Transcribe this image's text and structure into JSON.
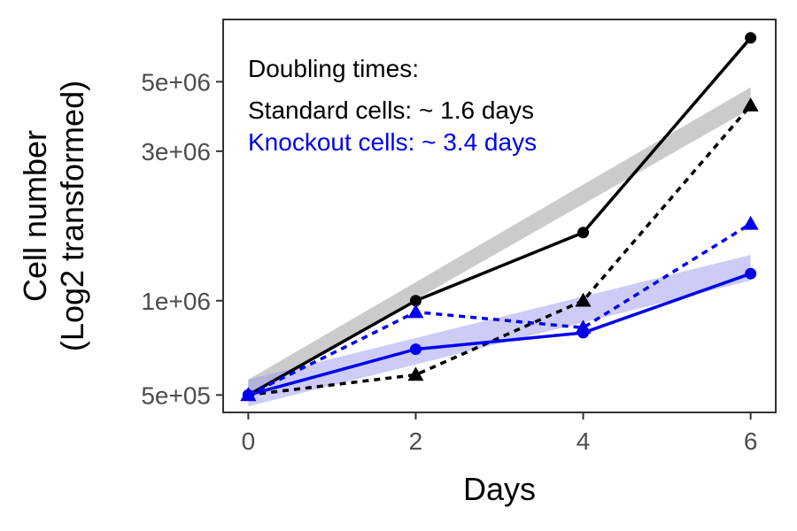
{
  "chart_data": {
    "type": "line",
    "xlabel": "Days",
    "ylabel_lines": [
      "Cell number",
      "(Log2 transformed)"
    ],
    "x_ticks": [
      0,
      2,
      4,
      6
    ],
    "x_tick_labels": [
      "0",
      "2",
      "4",
      "6"
    ],
    "xlim": [
      -0.3,
      6.3
    ],
    "y_scale": "log2",
    "y_ticks": [
      500000,
      1000000,
      3000000,
      5000000
    ],
    "y_tick_labels": [
      "5e+05",
      "1e+06",
      "3e+06",
      "5e+06"
    ],
    "ylim": [
      440000,
      7900000
    ],
    "grid": false,
    "series": [
      {
        "key": "std_circle",
        "color": "#000000",
        "dash": "solid",
        "marker": "circle",
        "x": [
          0,
          2,
          4,
          6
        ],
        "y": [
          500000,
          1000000,
          1650000,
          6900000
        ]
      },
      {
        "key": "std_triangle",
        "color": "#000000",
        "dash": "dotted",
        "marker": "triangle",
        "x": [
          0,
          2,
          4,
          6
        ],
        "y": [
          500000,
          580000,
          1000000,
          4200000
        ]
      },
      {
        "key": "ko_circle",
        "color": "#0000ee",
        "dash": "solid",
        "marker": "circle",
        "x": [
          0,
          2,
          4,
          6
        ],
        "y": [
          500000,
          700000,
          790000,
          1220000
        ]
      },
      {
        "key": "ko_triangle",
        "color": "#0000ee",
        "dash": "dotted",
        "marker": "triangle",
        "x": [
          0,
          2,
          4,
          6
        ],
        "y": [
          500000,
          920000,
          820000,
          1760000
        ]
      }
    ],
    "fit_bands": [
      {
        "key": "standard_fit",
        "color": "#bebebe",
        "opacity": 0.8,
        "x": [
          0,
          6
        ],
        "y_low": [
          500000,
          4100000
        ],
        "y_high": [
          560000,
          4800000
        ]
      },
      {
        "key": "knockout_fit",
        "color": "#9999ee",
        "opacity": 0.5,
        "x": [
          0,
          6
        ],
        "y_low": [
          460000,
          1160000
        ],
        "y_high": [
          560000,
          1400000
        ]
      }
    ],
    "annotations": [
      {
        "key": "title",
        "text": "Doubling times:",
        "color": "#000000"
      },
      {
        "key": "standard",
        "text": "Standard cells: ~ 1.6 days",
        "color": "#000000"
      },
      {
        "key": "knockout",
        "text": "Knockout cells: ~ 3.4 days",
        "color": "#0000ee"
      }
    ]
  }
}
